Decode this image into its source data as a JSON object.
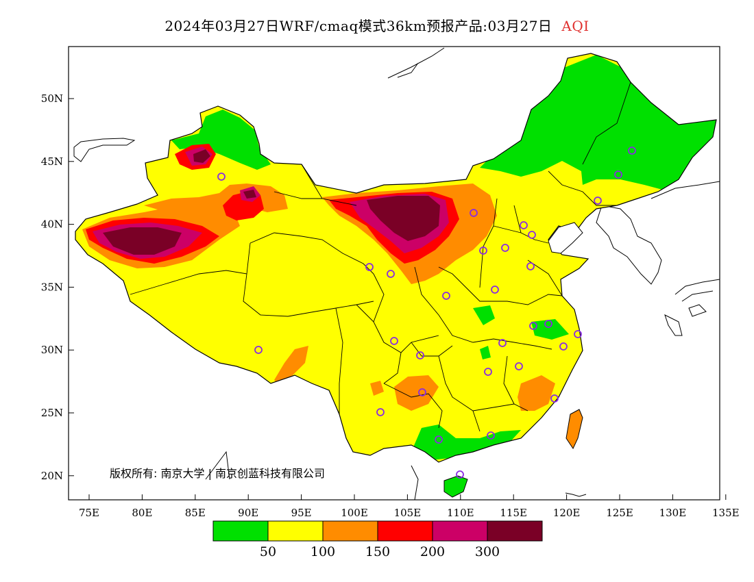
{
  "header": {
    "title": "2024年03月27日WRF/cmaq模式36km预报产品:03月27日",
    "product": "AQI"
  },
  "map": {
    "lon_ticks": [
      "75E",
      "80E",
      "85E",
      "90E",
      "95E",
      "100E",
      "105E",
      "110E",
      "115E",
      "120E",
      "125E",
      "130E",
      "135E"
    ],
    "lat_ticks": [
      "50N",
      "45N",
      "40N",
      "35N",
      "30N",
      "25N",
      "20N"
    ],
    "copyright": "版权所有: 南京大学 | 南京创蓝科技有限公司"
  },
  "legend": {
    "colors": [
      "#00e000",
      "#ffff00",
      "#ff8c00",
      "#ff0000",
      "#cc0066",
      "#7a0026"
    ],
    "labels": [
      "50",
      "100",
      "150",
      "200",
      "300"
    ]
  },
  "colors": {
    "land_outside": "#ffffff",
    "station_marker": "#8a2be2"
  }
}
